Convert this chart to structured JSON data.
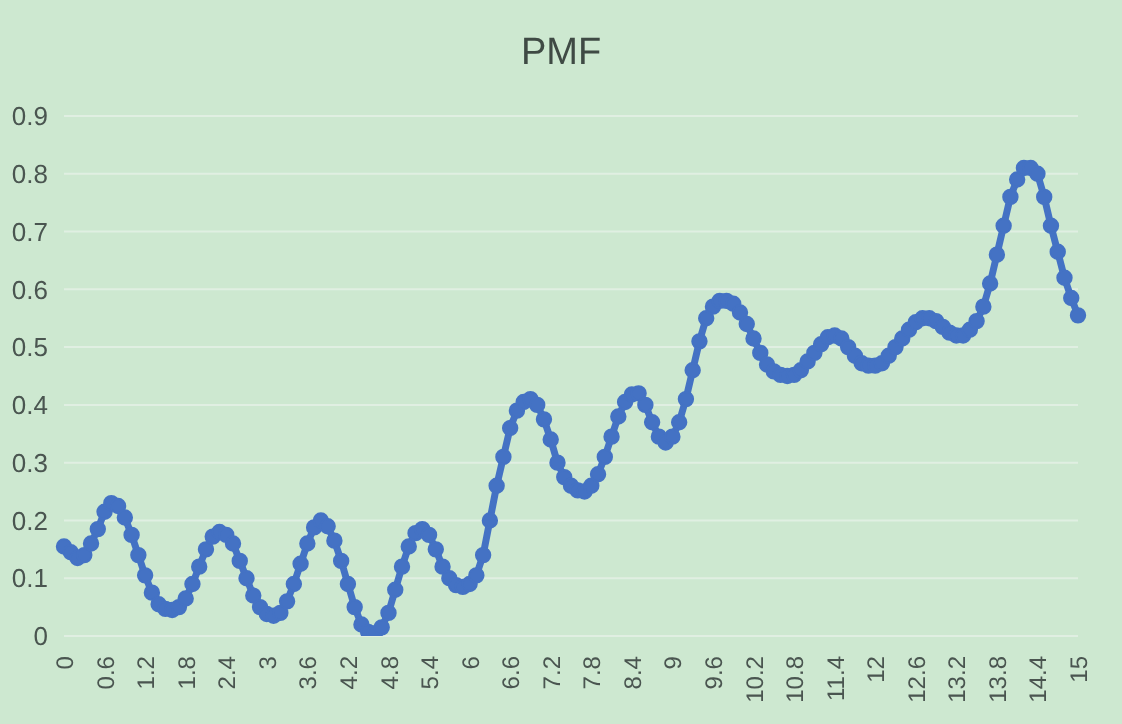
{
  "chart_data": {
    "type": "line",
    "title": "PMF",
    "categories": [
      "0",
      null,
      null,
      null,
      null,
      null,
      "0.6",
      null,
      null,
      null,
      null,
      null,
      "1.2",
      null,
      null,
      null,
      null,
      null,
      "1.8",
      null,
      null,
      null,
      null,
      null,
      "2.4",
      null,
      null,
      null,
      null,
      null,
      "3",
      null,
      null,
      null,
      null,
      null,
      "3.6",
      null,
      null,
      null,
      null,
      null,
      "4.2",
      null,
      null,
      null,
      null,
      null,
      "4.8",
      null,
      null,
      null,
      null,
      null,
      "5.4",
      null,
      null,
      null,
      null,
      null,
      "6",
      null,
      null,
      null,
      null,
      null,
      "6.6",
      null,
      null,
      null,
      null,
      null,
      "7.2",
      null,
      null,
      null,
      null,
      null,
      "7.8",
      null,
      null,
      null,
      null,
      null,
      "8.4",
      null,
      null,
      null,
      null,
      null,
      "9",
      null,
      null,
      null,
      null,
      null,
      "9.6",
      null,
      null,
      null,
      null,
      null,
      "10.2",
      null,
      null,
      null,
      null,
      null,
      "10.8",
      null,
      null,
      null,
      null,
      null,
      "11.4",
      null,
      null,
      null,
      null,
      null,
      "12",
      null,
      null,
      null,
      null,
      null,
      "12.6",
      null,
      null,
      null,
      null,
      null,
      "13.2",
      null,
      null,
      null,
      null,
      null,
      "13.8",
      null,
      null,
      null,
      null,
      null,
      "14.4",
      null,
      null,
      null,
      null,
      null,
      "15"
    ],
    "series": [
      {
        "color": "#4472c4",
        "values": [
          0.155,
          0.145,
          0.135,
          0.14,
          0.16,
          0.185,
          0.215,
          0.23,
          0.225,
          0.205,
          0.175,
          0.14,
          0.105,
          0.075,
          0.055,
          0.047,
          0.045,
          0.05,
          0.065,
          0.09,
          0.12,
          0.15,
          0.172,
          0.18,
          0.175,
          0.16,
          0.13,
          0.1,
          0.07,
          0.05,
          0.038,
          0.035,
          0.04,
          0.06,
          0.09,
          0.125,
          0.16,
          0.188,
          0.2,
          0.19,
          0.165,
          0.13,
          0.09,
          0.05,
          0.02,
          0.007,
          0.005,
          0.015,
          0.04,
          0.08,
          0.12,
          0.155,
          0.178,
          0.185,
          0.175,
          0.15,
          0.12,
          0.1,
          0.088,
          0.085,
          0.09,
          0.105,
          0.14,
          0.2,
          0.26,
          0.31,
          0.36,
          0.39,
          0.405,
          0.41,
          0.4,
          0.375,
          0.34,
          0.3,
          0.275,
          0.26,
          0.252,
          0.25,
          0.26,
          0.28,
          0.31,
          0.345,
          0.38,
          0.405,
          0.418,
          0.42,
          0.4,
          0.37,
          0.345,
          0.335,
          0.345,
          0.37,
          0.41,
          0.46,
          0.51,
          0.55,
          0.57,
          0.58,
          0.58,
          0.575,
          0.56,
          0.54,
          0.515,
          0.49,
          0.47,
          0.458,
          0.452,
          0.45,
          0.452,
          0.46,
          0.475,
          0.49,
          0.505,
          0.517,
          0.52,
          0.515,
          0.5,
          0.485,
          0.472,
          0.468,
          0.468,
          0.472,
          0.485,
          0.5,
          0.515,
          0.53,
          0.543,
          0.55,
          0.55,
          0.545,
          0.535,
          0.525,
          0.52,
          0.52,
          0.53,
          0.545,
          0.57,
          0.61,
          0.66,
          0.71,
          0.76,
          0.79,
          0.81,
          0.81,
          0.8,
          0.76,
          0.71,
          0.665,
          0.62,
          0.585,
          0.555
        ]
      }
    ],
    "ylim": [
      0,
      0.9
    ],
    "yticks": [
      0,
      0.1,
      0.2,
      0.3,
      0.4,
      0.5,
      0.6,
      0.7,
      0.8,
      0.9
    ],
    "grid": "y",
    "legend": false,
    "marker": "circle",
    "line_style": "solid"
  }
}
